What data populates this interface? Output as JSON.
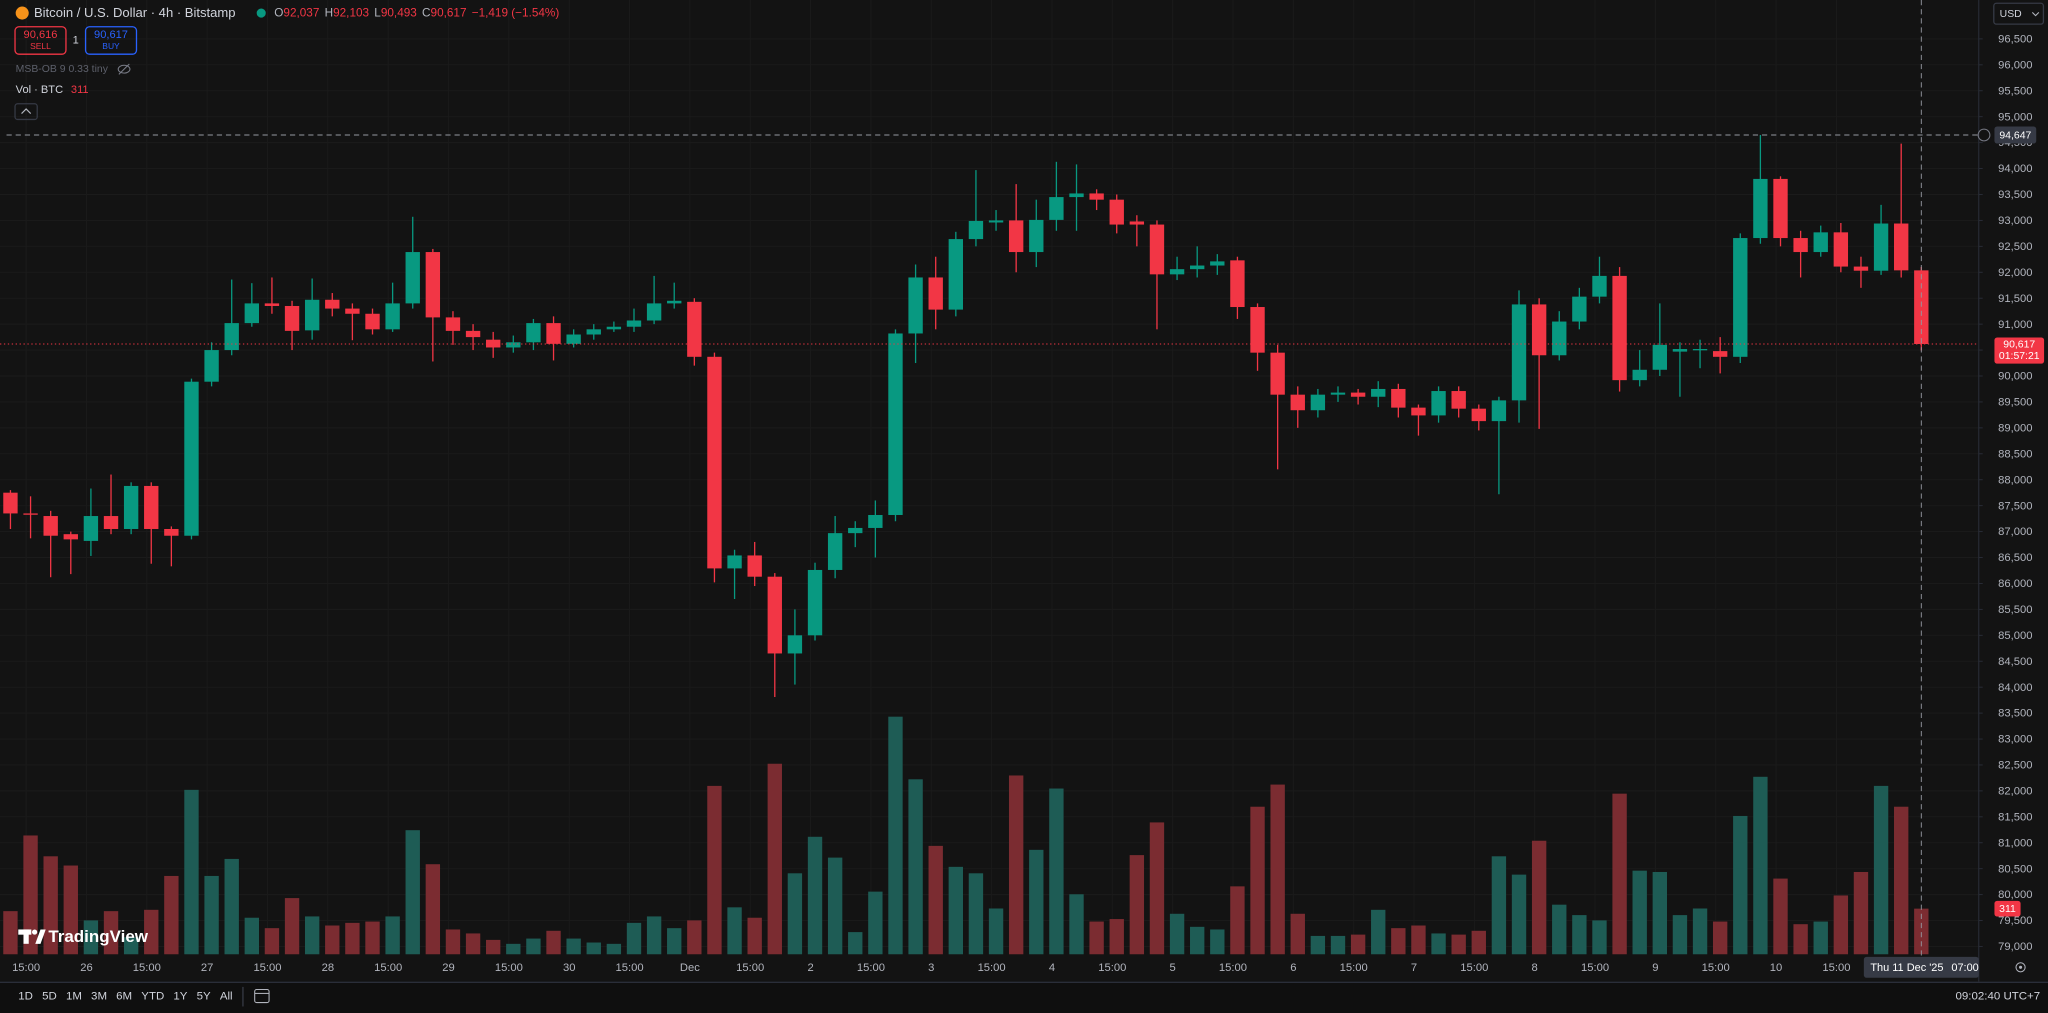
{
  "header": {
    "symbol": "Bitcoin / U.S. Dollar · 4h · Bitstamp",
    "ohlc": [
      {
        "label": "O",
        "value": "92,037"
      },
      {
        "label": "H",
        "value": "92,103"
      },
      {
        "label": "L",
        "value": "90,493"
      },
      {
        "label": "C",
        "value": "90,617"
      }
    ],
    "change": "−1,419 (−1.54%)"
  },
  "trade": {
    "sell_price": "90,616",
    "sell_label": "SELL",
    "quantity": "1",
    "buy_price": "90,617",
    "buy_label": "BUY"
  },
  "indicators": {
    "msb": "MSB-OB 9 0.33 tiny",
    "vol_label": "Vol · BTC"
  },
  "currency": "USD",
  "logo": "TradingView",
  "timeframes": [
    "1D",
    "5D",
    "1M",
    "3M",
    "6M",
    "YTD",
    "1Y",
    "5Y",
    "All"
  ],
  "clock": "09:02:40 UTC+7",
  "chart_data": {
    "type": "candlestick",
    "open": [
      87750,
      87350,
      87300,
      86950,
      86820,
      87300,
      87050,
      87880,
      87050,
      86920,
      89890,
      90500,
      91020,
      91400,
      91350,
      90880,
      91470,
      91300,
      91200,
      90900,
      91400,
      92390,
      91130,
      90870,
      90700,
      90550,
      90650,
      91020,
      90620,
      90800,
      90900,
      90950,
      91070,
      91400,
      91430,
      90370,
      86290,
      86540,
      86130,
      84650,
      85000,
      86260,
      86970,
      87070,
      87320,
      90820,
      91900,
      91280,
      92640,
      92960,
      93000,
      92390,
      93010,
      93450,
      93520,
      93400,
      92980,
      92920,
      91960,
      92060,
      92130,
      92230,
      91330,
      90450,
      89640,
      89340,
      89640,
      89680,
      89600,
      89750,
      89390,
      89240,
      89710,
      89370,
      89130,
      89530,
      91380,
      90400,
      91050,
      91530,
      91930,
      89920,
      90120,
      90470,
      90500,
      90480,
      90370,
      92660,
      93800,
      92660,
      92390,
      92770,
      92110,
      92030,
      92940,
      92037
    ],
    "high": [
      87800,
      87680,
      87400,
      87000,
      87830,
      88100,
      87950,
      87950,
      87100,
      89950,
      90650,
      91860,
      91790,
      91900,
      91450,
      91880,
      91600,
      91400,
      91300,
      91800,
      93070,
      92450,
      91250,
      91000,
      90850,
      90780,
      91100,
      91150,
      90900,
      91000,
      91050,
      91300,
      91930,
      91800,
      91500,
      90450,
      86650,
      86800,
      86200,
      85500,
      86400,
      87300,
      87200,
      87600,
      90900,
      92150,
      92300,
      92780,
      93970,
      93200,
      93700,
      93400,
      94130,
      94080,
      93600,
      93500,
      93100,
      93000,
      92300,
      92500,
      92350,
      92300,
      91400,
      90600,
      89800,
      89750,
      89800,
      89750,
      89900,
      89850,
      89450,
      89800,
      89800,
      89450,
      89600,
      91650,
      91500,
      91250,
      91700,
      92300,
      92100,
      90500,
      91400,
      90650,
      90700,
      90750,
      92750,
      94647,
      93850,
      92800,
      92900,
      92950,
      92300,
      93300,
      94480,
      92103
    ],
    "low": [
      87050,
      86870,
      86120,
      86180,
      86530,
      86950,
      86950,
      86380,
      86330,
      86850,
      89800,
      90400,
      90950,
      91200,
      90500,
      90700,
      91150,
      90690,
      90800,
      90850,
      91300,
      90280,
      90600,
      90500,
      90350,
      90450,
      90500,
      90300,
      90550,
      90700,
      90850,
      90850,
      91000,
      91300,
      90200,
      86020,
      85700,
      85950,
      83810,
      84050,
      84900,
      86100,
      86700,
      86500,
      87200,
      90250,
      90900,
      91150,
      92500,
      92800,
      92000,
      92100,
      92800,
      92800,
      93200,
      92750,
      92500,
      90900,
      91850,
      91900,
      91950,
      91100,
      90100,
      88200,
      89000,
      89200,
      89500,
      89450,
      89400,
      89200,
      88850,
      89100,
      89200,
      88950,
      87720,
      89100,
      88980,
      90300,
      90900,
      91400,
      89700,
      89800,
      90000,
      89600,
      90150,
      90050,
      90250,
      92550,
      92500,
      91900,
      92300,
      92000,
      91700,
      91950,
      91900,
      90493
    ],
    "close": [
      87350,
      87330,
      86920,
      86850,
      87300,
      87050,
      87880,
      87050,
      86920,
      89890,
      90500,
      91020,
      91400,
      91350,
      90870,
      91470,
      91300,
      91200,
      90900,
      91400,
      92390,
      91130,
      90870,
      90750,
      90550,
      90650,
      91020,
      90620,
      90800,
      90900,
      90950,
      91070,
      91400,
      91450,
      90370,
      86290,
      86540,
      86130,
      84650,
      85000,
      86260,
      86970,
      87070,
      87320,
      90820,
      91900,
      91280,
      92640,
      92990,
      93000,
      92390,
      93010,
      93450,
      93520,
      93400,
      92920,
      92920,
      91960,
      92060,
      92130,
      92210,
      91330,
      90450,
      89640,
      89340,
      89640,
      89680,
      89600,
      89750,
      89390,
      89240,
      89710,
      89370,
      89130,
      89530,
      91380,
      90400,
      91050,
      91530,
      91930,
      89920,
      90120,
      90600,
      90520,
      90520,
      90370,
      92660,
      93800,
      92660,
      92390,
      92770,
      92110,
      92030,
      92940,
      92037,
      90617
    ],
    "volume": [
      294,
      810,
      668,
      605,
      231,
      294,
      116,
      303,
      534,
      1121,
      534,
      650,
      249,
      178,
      383,
      258,
      196,
      214,
      223,
      258,
      846,
      614,
      169,
      142,
      98,
      71,
      107,
      160,
      107,
      80,
      71,
      214,
      258,
      178,
      231,
      1148,
      320,
      249,
      1299,
      552,
      801,
      659,
      151,
      427,
      1620,
      1193,
      739,
      596,
      552,
      312,
      1219,
      712,
      1130,
      409,
      223,
      240,
      676,
      899,
      276,
      187,
      169,
      463,
      1006,
      1157,
      276,
      125,
      125,
      134,
      303,
      178,
      196,
      142,
      134,
      160,
      668,
      543,
      774,
      338,
      267,
      231,
      1095,
      570,
      561,
      267,
      312,
      223,
      943,
      1210,
      516,
      205,
      223,
      401,
      561,
      1148,
      1006,
      311
    ],
    "up_color": "#089981",
    "down_color": "#f23645",
    "volume_up_color": "#1e5c55",
    "volume_down_color": "#7b2c31",
    "grid": true,
    "ylim": [
      78850,
      97250
    ],
    "yticks": [
      {
        "value": 79000,
        "label": "79,000"
      },
      {
        "value": 79500,
        "label": "79,500"
      },
      {
        "value": 80000,
        "label": "80,000"
      },
      {
        "value": 80500,
        "label": "80,500"
      },
      {
        "value": 81000,
        "label": "81,000"
      },
      {
        "value": 81500,
        "label": "81,500"
      },
      {
        "value": 82000,
        "label": "82,000"
      },
      {
        "value": 82500,
        "label": "82,500"
      },
      {
        "value": 83000,
        "label": "83,000"
      },
      {
        "value": 83500,
        "label": "83,500"
      },
      {
        "value": 84000,
        "label": "84,000"
      },
      {
        "value": 84500,
        "label": "84,500"
      },
      {
        "value": 85000,
        "label": "85,000"
      },
      {
        "value": 85500,
        "label": "85,500"
      },
      {
        "value": 86000,
        "label": "86,000"
      },
      {
        "value": 86500,
        "label": "86,500"
      },
      {
        "value": 87000,
        "label": "87,000"
      },
      {
        "value": 87500,
        "label": "87,500"
      },
      {
        "value": 88000,
        "label": "88,000"
      },
      {
        "value": 88500,
        "label": "88,500"
      },
      {
        "value": 89000,
        "label": "89,000"
      },
      {
        "value": 89500,
        "label": "89,500"
      },
      {
        "value": 90000,
        "label": "90,000"
      },
      {
        "value": 90500,
        "label": "90,500"
      },
      {
        "value": 91000,
        "label": "91,000"
      },
      {
        "value": 91500,
        "label": "91,500"
      },
      {
        "value": 92000,
        "label": "92,000"
      },
      {
        "value": 92500,
        "label": "92,500"
      },
      {
        "value": 93000,
        "label": "93,000"
      },
      {
        "value": 93500,
        "label": "93,500"
      },
      {
        "value": 94000,
        "label": "94,000"
      },
      {
        "value": 94500,
        "label": "94,500"
      },
      {
        "value": 95000,
        "label": "95,000"
      },
      {
        "value": 95500,
        "label": "95,500"
      },
      {
        "value": 96000,
        "label": "96,000"
      },
      {
        "value": 96500,
        "label": "96,500"
      }
    ],
    "x_labels": [
      "15:00",
      "26",
      "15:00",
      "27",
      "15:00",
      "28",
      "15:00",
      "29",
      "15:00",
      "30",
      "15:00",
      "Dec",
      "15:00",
      "2",
      "15:00",
      "3",
      "15:00",
      "4",
      "15:00",
      "5",
      "15:00",
      "6",
      "15:00",
      "7",
      "15:00",
      "8",
      "15:00",
      "9",
      "15:00",
      "10",
      "15:00"
    ],
    "crosshair": {
      "value": 94647,
      "label": "94,647"
    },
    "crosshair_date": "Thu 11 Dec '25",
    "crosshair_hour": "07:00",
    "last_price": {
      "value": 90617,
      "label": "90,617"
    },
    "countdown": "01:57:21"
  }
}
